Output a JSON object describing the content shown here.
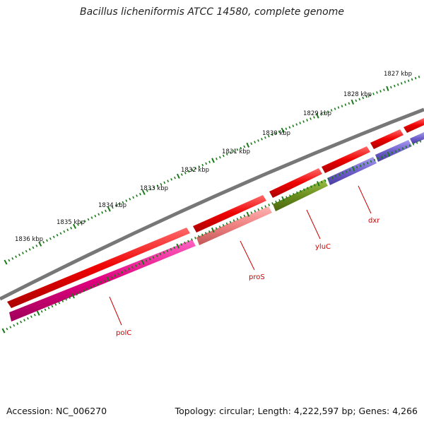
{
  "title": "Bacillus licheniformis ATCC 14580, complete genome",
  "footer": {
    "accession": "Accession: NC_006270",
    "topology": "Topology: circular; Length: 4,222,597 bp; Genes: 4,266"
  },
  "ruler": {
    "color": "#1a7a1a",
    "labels": [
      "1827 kbp",
      "1828 kbp",
      "1829 kbp",
      "1830 kbp",
      "1831 kbp",
      "1832 kbp",
      "1833 kbp",
      "1834 kbp",
      "1835 kbp",
      "1836 kbp"
    ]
  },
  "backbone_color": "#777777",
  "feature_colors": {
    "cds": "#e8001c",
    "polC": "#e0007e",
    "proS": "#ef8080",
    "yluC": "#6b8e1e",
    "dxr": "#7060cc"
  },
  "genes": [
    {
      "name": "polC",
      "color": "#e0007e"
    },
    {
      "name": "proS",
      "color": "#ef8080"
    },
    {
      "name": "yluC",
      "color": "#6b8e1e"
    },
    {
      "name": "dxr",
      "color": "#7060cc"
    }
  ]
}
